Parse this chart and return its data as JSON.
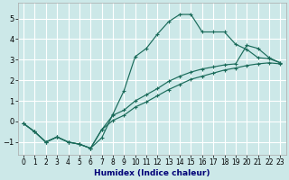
{
  "xlabel": "Humidex (Indice chaleur)",
  "bg_color": "#cce8e8",
  "grid_color": "#ffffff",
  "line_color": "#1a6b5a",
  "xlim": [
    -0.5,
    23.5
  ],
  "ylim": [
    -1.6,
    5.75
  ],
  "xticks": [
    0,
    1,
    2,
    3,
    4,
    5,
    6,
    7,
    8,
    9,
    10,
    11,
    12,
    13,
    14,
    15,
    16,
    17,
    18,
    19,
    20,
    21,
    22,
    23
  ],
  "yticks": [
    -1,
    0,
    1,
    2,
    3,
    4,
    5
  ],
  "s1_x": [
    0,
    1,
    2,
    3,
    4,
    5,
    6,
    7,
    8,
    9,
    10,
    11,
    12,
    13,
    14,
    15,
    16,
    17,
    18,
    19,
    20,
    21,
    22,
    23
  ],
  "s1_y": [
    -0.1,
    -0.5,
    -1.0,
    -0.75,
    -1.0,
    -1.1,
    -1.3,
    -0.8,
    0.35,
    1.5,
    3.15,
    3.55,
    4.25,
    4.85,
    5.2,
    5.2,
    4.35,
    4.35,
    4.35,
    3.75,
    3.5,
    3.1,
    3.05,
    2.85
  ],
  "s2_x": [
    0,
    1,
    2,
    3,
    4,
    5,
    6,
    7,
    8,
    9,
    10,
    11,
    12,
    13,
    14,
    15,
    16,
    17,
    18,
    19,
    20,
    21,
    22,
    23
  ],
  "s2_y": [
    -0.1,
    -0.5,
    -1.0,
    -0.75,
    -1.0,
    -1.1,
    -1.3,
    -0.4,
    0.3,
    0.55,
    1.0,
    1.3,
    1.6,
    1.95,
    2.2,
    2.4,
    2.55,
    2.65,
    2.75,
    2.8,
    3.7,
    3.55,
    3.1,
    2.85
  ],
  "s3_x": [
    0,
    1,
    2,
    3,
    4,
    5,
    6,
    7,
    8,
    9,
    10,
    11,
    12,
    13,
    14,
    15,
    16,
    17,
    18,
    19,
    20,
    21,
    22,
    23
  ],
  "s3_y": [
    -0.1,
    -0.5,
    -1.0,
    -0.75,
    -1.0,
    -1.1,
    -1.3,
    -0.4,
    0.05,
    0.3,
    0.7,
    0.95,
    1.25,
    1.55,
    1.8,
    2.05,
    2.2,
    2.35,
    2.5,
    2.6,
    2.72,
    2.8,
    2.85,
    2.8
  ]
}
